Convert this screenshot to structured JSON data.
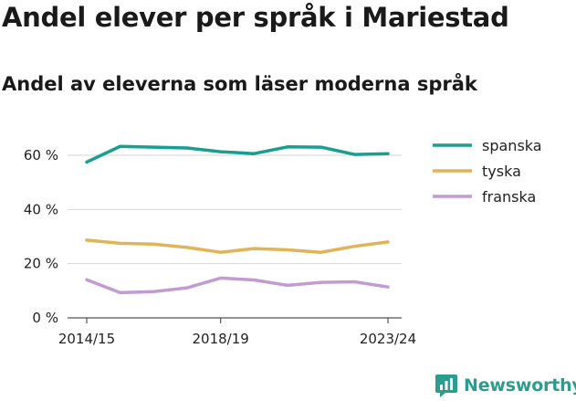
{
  "title": "Andel elever per språk i Mariestad",
  "subtitle": "Andel av eleverna som läser moderna språk",
  "brand": "Newsworthy",
  "chart_data": {
    "type": "line",
    "x": [
      "2014/15",
      "2015/16",
      "2016/17",
      "2017/18",
      "2018/19",
      "2019/20",
      "2020/21",
      "2021/22",
      "2022/23",
      "2023/24"
    ],
    "x_tick_labels": [
      "2014/15",
      "2018/19",
      "2023/24"
    ],
    "y_ticks": [
      0,
      20,
      40,
      60
    ],
    "y_tick_labels": [
      "0 %",
      "20 %",
      "40 %",
      "60 %"
    ],
    "ylim": [
      0,
      66
    ],
    "grid": "horizontal",
    "legend_position": "right",
    "series": [
      {
        "name": "spanska",
        "color": "#1a9e8f",
        "values": [
          57.5,
          63.3,
          63.0,
          62.7,
          61.3,
          60.6,
          63.1,
          63.0,
          60.3,
          60.6
        ]
      },
      {
        "name": "tyska",
        "color": "#e0b45a",
        "values": [
          28.7,
          27.5,
          27.2,
          26.0,
          24.2,
          25.6,
          25.1,
          24.2,
          26.4,
          28.0
        ]
      },
      {
        "name": "franska",
        "color": "#c39bd3",
        "values": [
          14.1,
          9.3,
          9.7,
          11.1,
          14.7,
          14.0,
          12.0,
          13.1,
          13.3,
          11.4
        ]
      }
    ]
  }
}
